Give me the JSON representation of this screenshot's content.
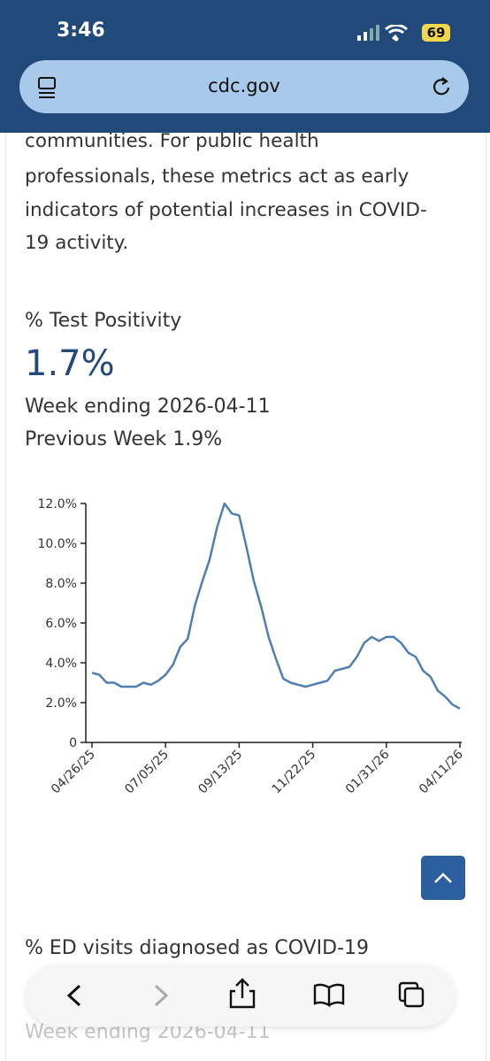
{
  "status": {
    "time": "3:46",
    "battery": "69"
  },
  "address": "cdc.gov",
  "intro_lines": [
    "communities. For public health",
    "professionals, these metrics act as early",
    "indicators of potential increases in COVID-",
    "19 activity."
  ],
  "metric": {
    "title": "% Test Positivity",
    "value": "1.7%",
    "week": "Week ending 2026-04-11",
    "previous": "Previous Week 1.9%"
  },
  "chart_data": {
    "type": "line",
    "categories": [
      "04/26/25",
      null,
      null,
      null,
      null,
      null,
      null,
      null,
      null,
      null,
      "07/05/25",
      null,
      null,
      null,
      null,
      null,
      null,
      null,
      null,
      null,
      "09/13/25",
      null,
      null,
      null,
      null,
      null,
      null,
      null,
      null,
      null,
      "11/22/25",
      null,
      null,
      null,
      null,
      null,
      null,
      null,
      null,
      null,
      "01/31/26",
      null,
      null,
      null,
      null,
      null,
      null,
      null,
      null,
      null,
      "04/11/26"
    ],
    "series": [
      {
        "name": "% Test Positivity",
        "color": "#4f7fb2",
        "values": [
          3.5,
          3.4,
          3.0,
          3.0,
          2.8,
          2.8,
          2.8,
          3.0,
          2.9,
          3.1,
          3.4,
          3.9,
          4.8,
          5.2,
          6.9,
          8.1,
          9.2,
          10.8,
          12.0,
          11.5,
          11.4,
          9.8,
          8.1,
          6.8,
          5.3,
          4.2,
          3.2,
          3.0,
          2.9,
          2.8,
          2.9,
          3.0,
          3.1,
          3.6,
          3.7,
          3.8,
          4.3,
          5.0,
          5.3,
          5.1,
          5.3,
          5.3,
          5.0,
          4.5,
          4.3,
          3.6,
          3.3,
          2.6,
          2.3,
          1.9,
          1.7
        ]
      }
    ],
    "ylim": [
      0,
      12
    ],
    "yticks": [
      0,
      {
        "value": 2,
        "label": "2.0%"
      },
      {
        "value": 4,
        "label": "4.0%"
      },
      {
        "value": 6,
        "label": "6.0%"
      },
      {
        "value": 8,
        "label": "8.0%"
      },
      {
        "value": 10,
        "label": "10.0%"
      },
      {
        "value": 12,
        "label": "12.0%"
      }
    ]
  },
  "next_metric": {
    "title": "% ED visits diagnosed as COVID-19",
    "week": "Week ending 2026-04-11"
  }
}
